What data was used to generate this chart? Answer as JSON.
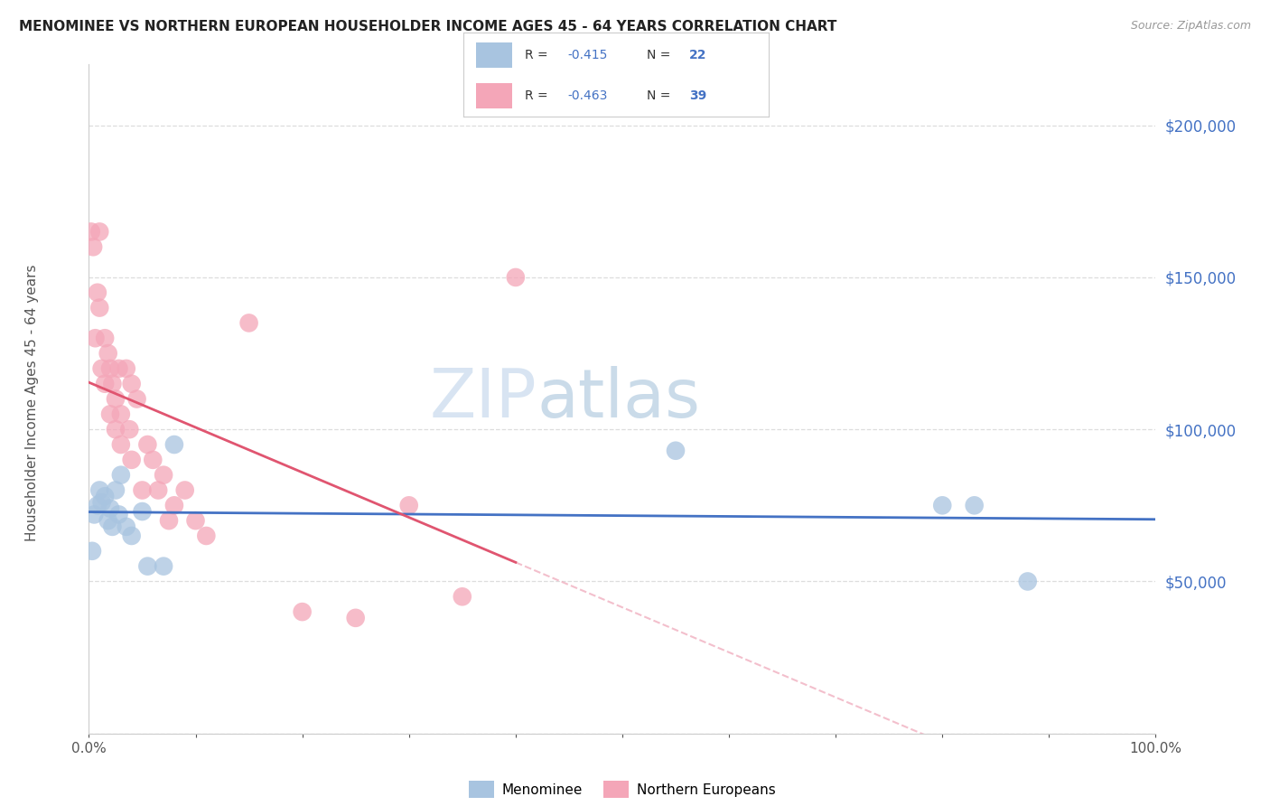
{
  "title": "MENOMINEE VS NORTHERN EUROPEAN HOUSEHOLDER INCOME AGES 45 - 64 YEARS CORRELATION CHART",
  "source": "Source: ZipAtlas.com",
  "ylabel": "Householder Income Ages 45 - 64 years",
  "legend_r1": "R = -0.415",
  "legend_n1": "N = 22",
  "legend_r2": "R = -0.463",
  "legend_n2": "N = 39",
  "menominee_color": "#a8c4e0",
  "northern_color": "#f4a6b8",
  "trend_blue": "#4472c4",
  "trend_pink": "#e05570",
  "trend_pink_dash": "#f0b0c0",
  "watermark_zip": "ZIP",
  "watermark_atlas": "atlas",
  "menominee_x": [
    0.3,
    0.5,
    0.8,
    1.0,
    1.2,
    1.5,
    1.8,
    2.0,
    2.2,
    2.5,
    2.8,
    3.0,
    3.5,
    4.0,
    5.0,
    5.5,
    7.0,
    8.0,
    55.0,
    80.0,
    83.0,
    88.0
  ],
  "menominee_y": [
    60000,
    72000,
    75000,
    80000,
    76000,
    78000,
    70000,
    74000,
    68000,
    80000,
    72000,
    85000,
    68000,
    65000,
    73000,
    55000,
    55000,
    95000,
    93000,
    75000,
    75000,
    50000
  ],
  "northern_x": [
    0.2,
    0.4,
    0.6,
    0.8,
    1.0,
    1.0,
    1.2,
    1.5,
    1.5,
    1.8,
    2.0,
    2.0,
    2.2,
    2.5,
    2.5,
    2.8,
    3.0,
    3.0,
    3.5,
    3.8,
    4.0,
    4.0,
    4.5,
    5.0,
    5.5,
    6.0,
    6.5,
    7.0,
    7.5,
    8.0,
    9.0,
    10.0,
    11.0,
    15.0,
    20.0,
    25.0,
    30.0,
    35.0,
    40.0
  ],
  "northern_y": [
    165000,
    160000,
    130000,
    145000,
    165000,
    140000,
    120000,
    130000,
    115000,
    125000,
    120000,
    105000,
    115000,
    110000,
    100000,
    120000,
    105000,
    95000,
    120000,
    100000,
    115000,
    90000,
    110000,
    80000,
    95000,
    90000,
    80000,
    85000,
    70000,
    75000,
    80000,
    70000,
    65000,
    135000,
    40000,
    38000,
    75000,
    45000,
    150000
  ],
  "xlim": [
    0,
    100
  ],
  "ylim": [
    0,
    220000
  ],
  "yticks": [
    0,
    50000,
    100000,
    150000,
    200000
  ],
  "ytick_labels": [
    "",
    "$50,000",
    "$100,000",
    "$150,000",
    "$200,000"
  ]
}
